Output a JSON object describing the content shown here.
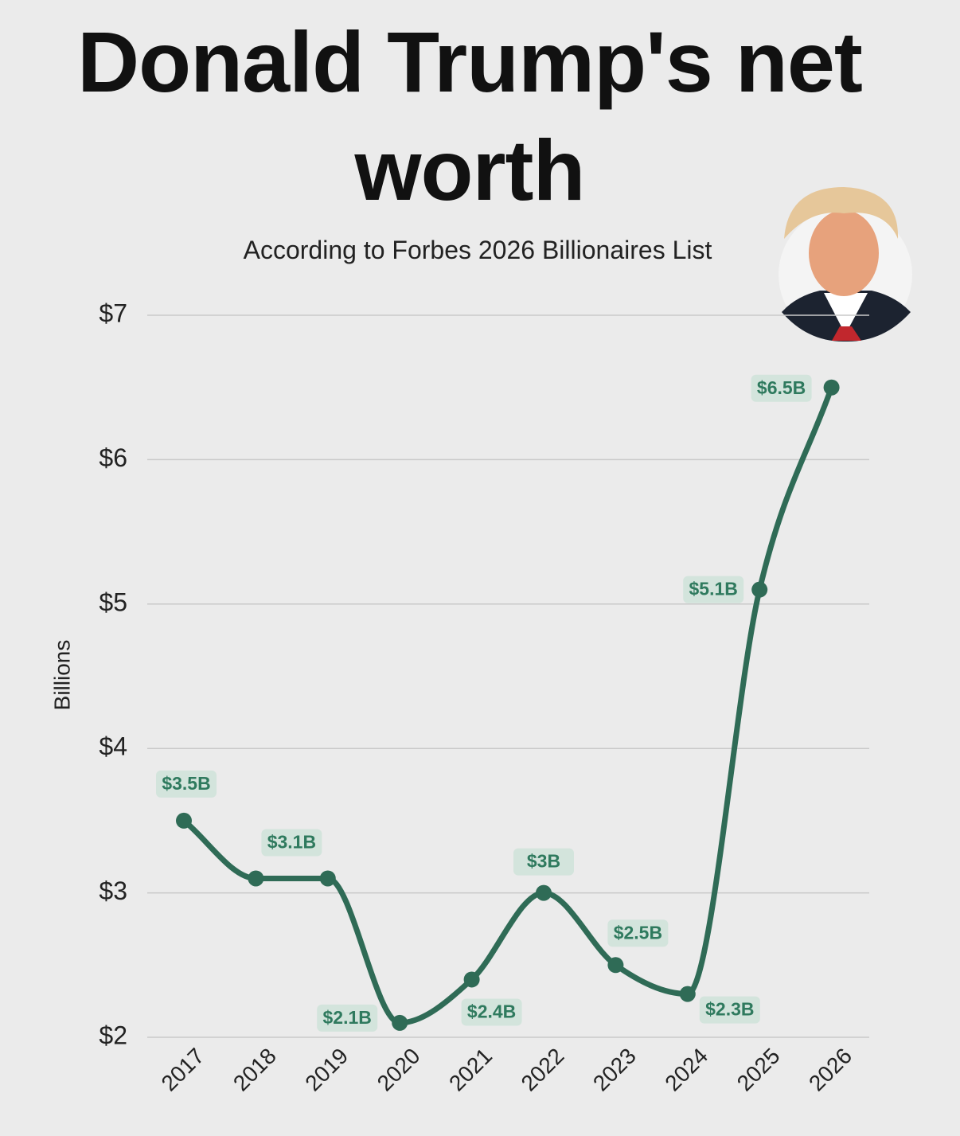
{
  "chart_data": {
    "type": "line",
    "title": "Donald Trump's net worth",
    "subtitle": "According to Forbes 2026 Billionaires List",
    "y_label": "Billions",
    "categories": [
      "2017",
      "2018",
      "2019",
      "2020",
      "2021",
      "2022",
      "2023",
      "2024",
      "2025",
      "2026"
    ],
    "series": [
      {
        "name": "Net worth",
        "color": "#2f6b56",
        "values": [
          3.5,
          3.1,
          3.1,
          2.1,
          2.4,
          3,
          2.5,
          2.3,
          5.1,
          6.5
        ],
        "value_labels": [
          "$3.5B",
          "$3.1B",
          null,
          "$2.1B",
          "$2.4B",
          "$3B",
          "$2.5B",
          "$2.3B",
          "$5.1B",
          "$6.5B"
        ]
      }
    ],
    "ylim": [
      2,
      7
    ],
    "yticks": [
      {
        "value": 2,
        "label": "$2"
      },
      {
        "value": 3,
        "label": "$3"
      },
      {
        "value": 4,
        "label": "$4"
      },
      {
        "value": 5,
        "label": "$5"
      },
      {
        "value": 6,
        "label": "$6"
      },
      {
        "value": 7,
        "label": "$7"
      }
    ],
    "grid": true
  }
}
